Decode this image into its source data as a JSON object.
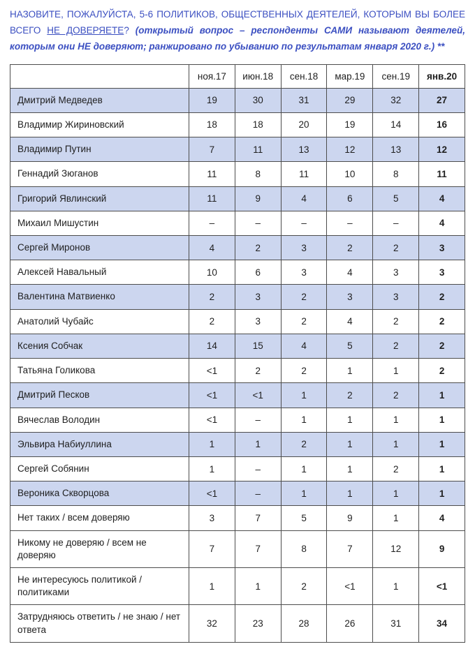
{
  "question": {
    "main": "НАЗОВИТЕ, ПОЖАЛУЙСТА, 5-6 ПОЛИТИКОВ, ОБЩЕСТВЕННЫХ ДЕЯТЕЛЕЙ, КОТОРЫМ ВЫ БОЛЕЕ ВСЕГО ",
    "underlined": "НЕ ДОВЕРЯЕТЕ",
    "question_mark": "? ",
    "note": "(открытый вопрос – респонденты САМИ называют деятелей, которым они НЕ доверяют; ранжировано по убыванию по результатам января 2020 г.) **"
  },
  "colors": {
    "question_text": "#3b4fc1",
    "row_highlight": "#ccd6ef",
    "border": "#4d4d4d"
  },
  "table": {
    "corner_label": "",
    "columns": [
      "ноя.17",
      "июн.18",
      "сен.18",
      "мар.19",
      "сен.19",
      "янв.20"
    ],
    "rows": [
      {
        "label": "Дмитрий Медведев",
        "values": [
          "19",
          "30",
          "31",
          "29",
          "32",
          "27"
        ],
        "shaded": true
      },
      {
        "label": "Владимир Жириновский",
        "values": [
          "18",
          "18",
          "20",
          "19",
          "14",
          "16"
        ],
        "shaded": false
      },
      {
        "label": "Владимир Путин",
        "values": [
          "7",
          "11",
          "13",
          "12",
          "13",
          "12"
        ],
        "shaded": true
      },
      {
        "label": "Геннадий Зюганов",
        "values": [
          "11",
          "8",
          "11",
          "10",
          "8",
          "11"
        ],
        "shaded": false
      },
      {
        "label": "Григорий Явлинский",
        "values": [
          "11",
          "9",
          "4",
          "6",
          "5",
          "4"
        ],
        "shaded": true
      },
      {
        "label": "Михаил Мишустин",
        "values": [
          "–",
          "–",
          "–",
          "–",
          "–",
          "4"
        ],
        "shaded": false
      },
      {
        "label": "Сергей Миронов",
        "values": [
          "4",
          "2",
          "3",
          "2",
          "2",
          "3"
        ],
        "shaded": true
      },
      {
        "label": "Алексей Навальный",
        "values": [
          "10",
          "6",
          "3",
          "4",
          "3",
          "3"
        ],
        "shaded": false
      },
      {
        "label": "Валентина Матвиенко",
        "values": [
          "2",
          "3",
          "2",
          "3",
          "3",
          "2"
        ],
        "shaded": true
      },
      {
        "label": "Анатолий Чубайс",
        "values": [
          "2",
          "3",
          "2",
          "4",
          "2",
          "2"
        ],
        "shaded": false
      },
      {
        "label": "Ксения Собчак",
        "values": [
          "14",
          "15",
          "4",
          "5",
          "2",
          "2"
        ],
        "shaded": true
      },
      {
        "label": "Татьяна Голикова",
        "values": [
          "<1",
          "2",
          "2",
          "1",
          "1",
          "2"
        ],
        "shaded": false
      },
      {
        "label": "Дмитрий Песков",
        "values": [
          "<1",
          "<1",
          "1",
          "2",
          "2",
          "1"
        ],
        "shaded": true
      },
      {
        "label": "Вячеслав Володин",
        "values": [
          "<1",
          "–",
          "1",
          "1",
          "1",
          "1"
        ],
        "shaded": false
      },
      {
        "label": "Эльвира Набиуллина",
        "values": [
          "1",
          "1",
          "2",
          "1",
          "1",
          "1"
        ],
        "shaded": true
      },
      {
        "label": "Сергей Собянин",
        "values": [
          "1",
          "–",
          "1",
          "1",
          "2",
          "1"
        ],
        "shaded": false
      },
      {
        "label": "Вероника Скворцова",
        "values": [
          "<1",
          "–",
          "1",
          "1",
          "1",
          "1"
        ],
        "shaded": true
      },
      {
        "label": "Нет таких / всем доверяю",
        "values": [
          "3",
          "7",
          "5",
          "9",
          "1",
          "4"
        ],
        "shaded": false
      },
      {
        "label": "Никому не доверяю / всем не доверяю",
        "values": [
          "7",
          "7",
          "8",
          "7",
          "12",
          "9"
        ],
        "shaded": false
      },
      {
        "label": "Не интересуюсь политикой / политиками",
        "values": [
          "1",
          "1",
          "2",
          "<1",
          "1",
          "<1"
        ],
        "shaded": false
      },
      {
        "label": "Затрудняюсь ответить / не знаю / нет ответа",
        "values": [
          "32",
          "23",
          "28",
          "26",
          "31",
          "34"
        ],
        "shaded": false
      }
    ]
  }
}
